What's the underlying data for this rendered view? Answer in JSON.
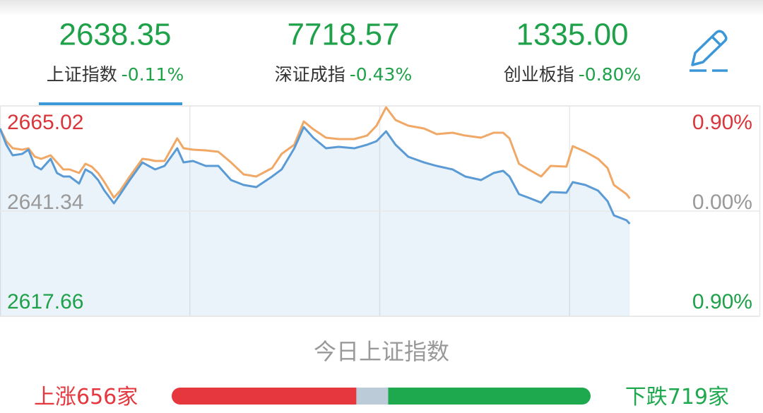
{
  "indices": [
    {
      "value": "2638.35",
      "name": "上证指数",
      "change": "-0.11%"
    },
    {
      "value": "7718.57",
      "name": "深证成指",
      "change": "-0.43%"
    },
    {
      "value": "1335.00",
      "name": "创业板指",
      "change": "-0.80%"
    }
  ],
  "selected": 0,
  "chart_data": {
    "type": "line",
    "x": [
      0,
      2,
      4,
      7,
      9,
      11,
      13,
      16,
      18,
      20,
      22,
      25,
      27,
      29,
      31,
      33,
      36,
      38,
      41,
      45,
      47,
      49,
      52,
      56,
      58,
      61,
      65,
      69,
      73,
      77,
      81,
      86,
      89,
      93,
      96,
      99,
      103,
      107,
      112,
      116,
      119,
      122,
      125,
      129,
      134,
      138,
      143,
      147,
      152,
      156,
      159,
      161,
      164,
      167,
      171,
      174,
      179,
      181,
      185,
      189,
      192,
      194,
      198,
      199
    ],
    "xlim": [
      0,
      240
    ],
    "xticks": [
      60,
      120,
      180
    ],
    "ylim": [
      2617.66,
      2665.02
    ],
    "yticks": [
      2617.66,
      2641.34,
      2665.02
    ],
    "y2lim": [
      -0.9,
      0.9
    ],
    "y2ticks": [
      {
        "value": 0.9,
        "label": "0.90%"
      },
      {
        "value": 0,
        "label": "0.00%"
      },
      {
        "value": -0.9,
        "label": "0.90%"
      }
    ],
    "series": [
      {
        "color": "#5b9bd5",
        "area": true,
        "values": [
          2659.93,
          2656.28,
          2653.89,
          2654.21,
          2655.16,
          2651.51,
          2650.72,
          2653.1,
          2649.92,
          2649.13,
          2649.13,
          2647.54,
          2650.72,
          2649.92,
          2648.33,
          2645.95,
          2643.09,
          2645.15,
          2648.33,
          2652.3,
          2651.51,
          2650.72,
          2651.51,
          2655.48,
          2652.3,
          2652.62,
          2651.51,
          2651.51,
          2648.33,
          2647.22,
          2646.75,
          2649.13,
          2650.72,
          2655.48,
          2660.25,
          2657.87,
          2655.48,
          2655.8,
          2655.48,
          2656.28,
          2657.07,
          2659.3,
          2656.28,
          2653.58,
          2652.3,
          2651.51,
          2650.72,
          2649.13,
          2648.33,
          2649.92,
          2650.4,
          2649.13,
          2645.15,
          2644.36,
          2643.24,
          2645.63,
          2645.47,
          2647.86,
          2647.22,
          2645.95,
          2643.56,
          2640.38,
          2639.27,
          2638.48
        ]
      },
      {
        "color": "#f0a866",
        "area": false,
        "values": [
          2659.93,
          2657.07,
          2655.48,
          2655.16,
          2655.48,
          2653.58,
          2653.1,
          2653.89,
          2652.3,
          2650.72,
          2650.72,
          2649.92,
          2651.99,
          2651.35,
          2649.92,
          2647.86,
          2644.36,
          2645.95,
          2649.13,
          2653.1,
          2652.94,
          2652.62,
          2652.62,
          2657.71,
          2655.48,
          2655.16,
          2655.01,
          2654.69,
          2652.3,
          2649.6,
          2649.13,
          2651.03,
          2654.21,
          2656.28,
          2661.52,
          2659.77,
          2657.87,
          2657.55,
          2657.55,
          2658.34,
          2660.57,
          2664.7,
          2661.84,
          2660.57,
          2659.93,
          2658.66,
          2658.98,
          2658.34,
          2657.87,
          2658.98,
          2658.98,
          2657.71,
          2651.99,
          2650.72,
          2649.13,
          2651.51,
          2651.35,
          2655.96,
          2654.69,
          2653.1,
          2651.03,
          2647.22,
          2645.15,
          2644.2
        ]
      }
    ],
    "grid": true
  },
  "subtitle": "今日上证指数",
  "breadth": {
    "up": {
      "label": "上涨",
      "count": 656,
      "unit": "家",
      "color": "#e5373d"
    },
    "flat": {
      "count": 113,
      "color": "#bccbd8"
    },
    "down": {
      "label": "下跌",
      "count": 719,
      "unit": "家",
      "color": "#1fa94f"
    }
  }
}
